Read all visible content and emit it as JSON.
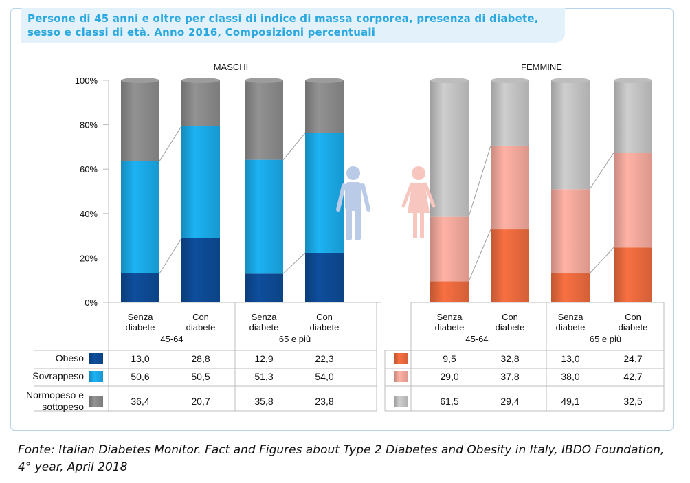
{
  "title": {
    "line1": "Persone di 45 anni e oltre per classi di indice di massa corporea, presenza di diabete,",
    "line2": "sesso e classi di età. Anno 2016, Composizioni percentuali"
  },
  "source": {
    "line1": "Fonte: Italian Diabetes Monitor. Fact and Figures about Type 2 Diabetes and Obesity in Italy, IBDO Foundation,",
    "line2": "4° year, April 2018"
  },
  "chart_data": {
    "type": "bar",
    "stacked": true,
    "title": "Persone di 45 anni e oltre per classi di indice di massa corporea, presenza di diabete, sesso e classi di età. Anno 2016, Composizioni percentuali",
    "ylabel": "",
    "ylim": [
      0,
      100
    ],
    "yticks": [
      "0%",
      "20%",
      "40%",
      "60%",
      "80%",
      "100%"
    ],
    "categories_bmi": [
      "Obeso",
      "Sovrappeso",
      "Normopeso e sottopeso"
    ],
    "groups": [
      {
        "name": "MASCHI",
        "colors": [
          "#0d4a94",
          "#1aa9e6",
          "#8a8a8a"
        ],
        "top_color": "#9c9c9c",
        "age_classes": [
          "45-64",
          "65 e più"
        ],
        "bars": [
          {
            "label_line1": "Senza",
            "label_line2": "diabete",
            "age": "45-64",
            "values": [
              13.0,
              50.6,
              36.4
            ],
            "display": [
              "13,0",
              "50,6",
              "36,4"
            ]
          },
          {
            "label_line1": "Con",
            "label_line2": "diabete",
            "age": "45-64",
            "values": [
              28.8,
              50.5,
              20.7
            ],
            "display": [
              "28,8",
              "50,5",
              "20,7"
            ]
          },
          {
            "label_line1": "Senza",
            "label_line2": "diabete",
            "age": "65 e più",
            "values": [
              12.9,
              51.3,
              35.8
            ],
            "display": [
              "12,9",
              "51,3",
              "35,8"
            ]
          },
          {
            "label_line1": "Con",
            "label_line2": "diabete",
            "age": "65 e più",
            "values": [
              22.3,
              54.0,
              23.8
            ],
            "display": [
              "22,3",
              "54,0",
              "23,8"
            ]
          }
        ]
      },
      {
        "name": "FEMMINE",
        "colors": [
          "#ea6a3d",
          "#f3a89c",
          "#c2c2c2"
        ],
        "top_color": "#bdbdbd",
        "age_classes": [
          "45-64",
          "65 e più"
        ],
        "bars": [
          {
            "label_line1": "Senza",
            "label_line2": "diabete",
            "age": "45-64",
            "values": [
              9.5,
              29.0,
              61.5
            ],
            "display": [
              "9,5",
              "29,0",
              "61,5"
            ]
          },
          {
            "label_line1": "Con",
            "label_line2": "diabete",
            "age": "45-64",
            "values": [
              32.8,
              37.8,
              29.4
            ],
            "display": [
              "32,8",
              "37,8",
              "29,4"
            ]
          },
          {
            "label_line1": "Senza",
            "label_line2": "diabete",
            "age": "65 e più",
            "values": [
              13.0,
              38.0,
              49.1
            ],
            "display": [
              "13,0",
              "38,0",
              "49,1"
            ]
          },
          {
            "label_line1": "Con",
            "label_line2": "diabete",
            "age": "65 e più",
            "values": [
              24.7,
              42.7,
              32.5
            ],
            "display": [
              "24,7",
              "42,7",
              "32,5"
            ]
          }
        ]
      }
    ],
    "legend_rows": [
      {
        "line1": "Obeso",
        "line2": ""
      },
      {
        "line1": "Sovrappeso",
        "line2": ""
      },
      {
        "line1": "Normopeso e",
        "line2": "sottopeso"
      }
    ]
  }
}
